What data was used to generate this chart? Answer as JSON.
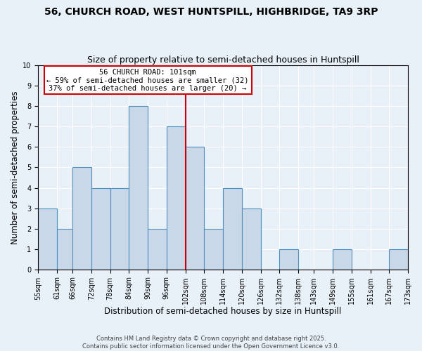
{
  "title": "56, CHURCH ROAD, WEST HUNTSPILL, HIGHBRIDGE, TA9 3RP",
  "subtitle": "Size of property relative to semi-detached houses in Huntspill",
  "xlabel": "Distribution of semi-detached houses by size in Huntspill",
  "ylabel": "Number of semi-detached properties",
  "bins": [
    55,
    61,
    66,
    72,
    78,
    84,
    90,
    96,
    102,
    108,
    114,
    120,
    126,
    132,
    138,
    143,
    149,
    155,
    161,
    167,
    173
  ],
  "bin_labels": [
    "55sqm",
    "61sqm",
    "66sqm",
    "72sqm",
    "78sqm",
    "84sqm",
    "90sqm",
    "96sqm",
    "102sqm",
    "108sqm",
    "114sqm",
    "120sqm",
    "126sqm",
    "132sqm",
    "138sqm",
    "143sqm",
    "149sqm",
    "155sqm",
    "161sqm",
    "167sqm",
    "173sqm"
  ],
  "counts": [
    3,
    2,
    5,
    4,
    4,
    8,
    2,
    7,
    6,
    2,
    4,
    3,
    0,
    1,
    0,
    0,
    1,
    0,
    0,
    1
  ],
  "bar_color": "#c8d8e8",
  "bar_edge_color": "#5090c0",
  "vline_x": 102,
  "vline_color": "#cc0000",
  "ylim": [
    0,
    10
  ],
  "yticks": [
    0,
    1,
    2,
    3,
    4,
    5,
    6,
    7,
    8,
    9,
    10
  ],
  "annotation_text": "56 CHURCH ROAD: 101sqm\n← 59% of semi-detached houses are smaller (32)\n37% of semi-detached houses are larger (20) →",
  "annotation_box_color": "#ffffff",
  "annotation_box_edge": "#cc0000",
  "bg_color": "#e8f0f8",
  "footer_line1": "Contains HM Land Registry data © Crown copyright and database right 2025.",
  "footer_line2": "Contains public sector information licensed under the Open Government Licence v3.0.",
  "title_fontsize": 10,
  "subtitle_fontsize": 9,
  "axis_label_fontsize": 8.5,
  "tick_fontsize": 7,
  "annotation_fontsize": 7.5,
  "footer_fontsize": 6
}
